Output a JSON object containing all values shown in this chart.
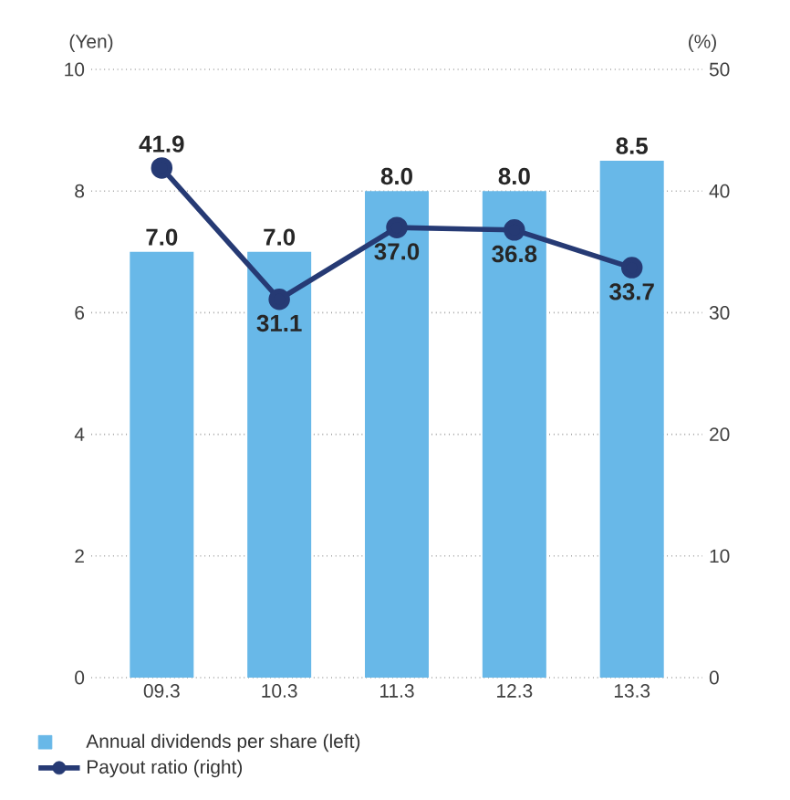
{
  "chart_data": {
    "type": "bar",
    "ylabel": "(Yen)",
    "y2label": "(%)",
    "categories": [
      "09.3",
      "10.3",
      "11.3",
      "12.3",
      "13.3"
    ],
    "series": [
      {
        "name": "Annual dividends per share (left)",
        "color": "#68b8e8",
        "values": [
          7.0,
          7.0,
          8.0,
          8.0,
          8.5
        ],
        "value_labels": [
          "7.0",
          "7.0",
          "8.0",
          "8.0",
          "8.5"
        ]
      },
      {
        "name": "Payout ratio (right)",
        "type": "line",
        "axis": "y2",
        "color": "#263a74",
        "values": [
          41.9,
          31.1,
          37.0,
          36.8,
          33.7
        ],
        "value_labels": [
          "41.9",
          "31.1",
          "37.0",
          "36.8",
          "33.7"
        ],
        "marker": "circle",
        "line_style": "solid"
      }
    ],
    "ylim": [
      0,
      10
    ],
    "yticks": [
      0,
      2,
      4,
      6,
      8,
      10
    ],
    "y2lim": [
      0,
      50
    ],
    "y2ticks": [
      0,
      10,
      20,
      30,
      40,
      50
    ],
    "grid": "y",
    "legend": "bottom"
  }
}
